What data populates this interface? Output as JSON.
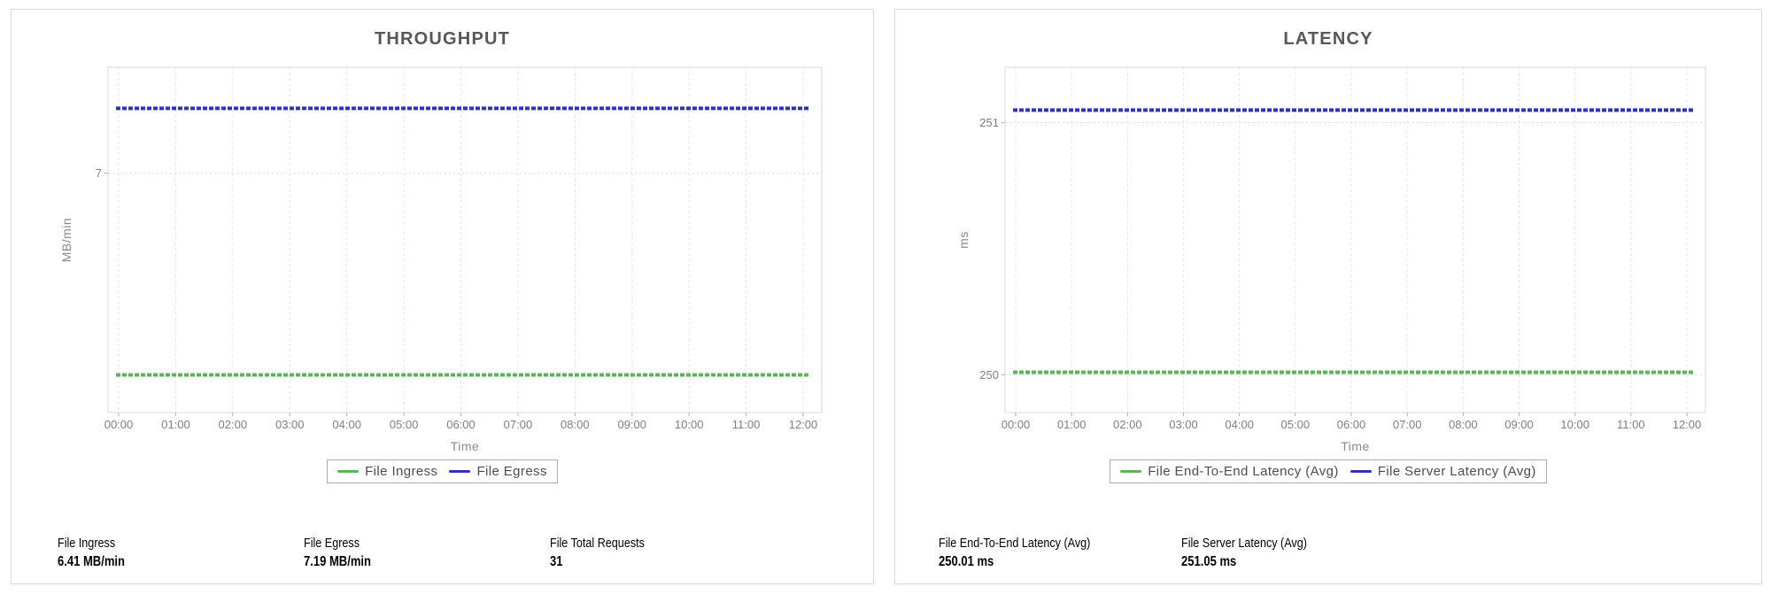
{
  "panels": [
    {
      "title": "THROUGHPUT",
      "stats": [
        {
          "label": "File Ingress",
          "value": "6.41 MB/min"
        },
        {
          "label": "File Egress",
          "value": "7.19 MB/min"
        },
        {
          "label": "File Total Requests",
          "value": "31"
        }
      ]
    },
    {
      "title": "LATENCY",
      "stats": [
        {
          "label": "File End-To-End Latency (Avg)",
          "value": "250.01 ms"
        },
        {
          "label": "File Server Latency (Avg)",
          "value": "251.05 ms"
        }
      ]
    }
  ],
  "colors": {
    "series_green": "#5ab55a",
    "series_blue": "#3232b4",
    "grid_vertical": "#e4e4e4",
    "grid_horizontal": "#dadada",
    "plot_border": "#d8d8d8",
    "tick_text": "#7f7f7f",
    "title_text": "#56575b"
  },
  "chart_data": [
    {
      "type": "line",
      "title": "THROUGHPUT",
      "xlabel": "Time",
      "ylabel": "MB/min",
      "x": [
        "00:00",
        "01:00",
        "02:00",
        "03:00",
        "04:00",
        "05:00",
        "06:00",
        "07:00",
        "08:00",
        "09:00",
        "10:00",
        "11:00",
        "12:00"
      ],
      "ylim": [
        6.3,
        7.31
      ],
      "y_ticks": [
        7
      ],
      "grid": true,
      "legend_position": "bottom",
      "series": [
        {
          "name": "File Ingress",
          "color": "#5ab55a",
          "values": [
            6.41,
            6.41,
            6.41,
            6.41,
            6.41,
            6.41,
            6.41,
            6.41,
            6.41,
            6.41,
            6.41,
            6.41,
            6.41
          ]
        },
        {
          "name": "File Egress",
          "color": "#3232b4",
          "values": [
            7.19,
            7.19,
            7.19,
            7.19,
            7.19,
            7.19,
            7.19,
            7.19,
            7.19,
            7.19,
            7.19,
            7.19,
            7.19
          ]
        }
      ]
    },
    {
      "type": "line",
      "title": "LATENCY",
      "xlabel": "Time",
      "ylabel": "ms",
      "x": [
        "00:00",
        "01:00",
        "02:00",
        "03:00",
        "04:00",
        "05:00",
        "06:00",
        "07:00",
        "08:00",
        "09:00",
        "10:00",
        "11:00",
        "12:00"
      ],
      "ylim": [
        249.85,
        251.22
      ],
      "y_ticks": [
        250,
        251
      ],
      "grid": true,
      "legend_position": "bottom",
      "series": [
        {
          "name": "File End-To-End Latency (Avg)",
          "color": "#5ab55a",
          "values": [
            250.01,
            250.01,
            250.01,
            250.01,
            250.01,
            250.01,
            250.01,
            250.01,
            250.01,
            250.01,
            250.01,
            250.01,
            250.01
          ]
        },
        {
          "name": "File Server Latency (Avg)",
          "color": "#3232b4",
          "values": [
            251.05,
            251.05,
            251.05,
            251.05,
            251.05,
            251.05,
            251.05,
            251.05,
            251.05,
            251.05,
            251.05,
            251.05,
            251.05
          ]
        }
      ]
    }
  ]
}
